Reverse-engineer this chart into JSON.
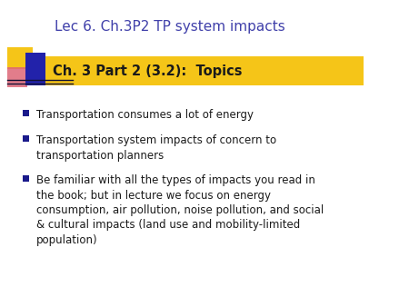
{
  "title": "Lec 6. Ch.3P2 TP system impacts",
  "title_color": "#4040AA",
  "title_fontsize": 11,
  "subtitle": "Ch. 3 Part 2 (3.2):  Topics",
  "subtitle_bg_color": "#F5C518",
  "subtitle_text_color": "#1A1A1A",
  "subtitle_fontsize": 10.5,
  "bullet_points": [
    "Transportation consumes a lot of energy",
    "Transportation system impacts of concern to\ntransportation planners",
    "Be familiar with all the types of impacts you read in\nthe book; but in lecture we focus on energy\nconsumption, air pollution, noise pollution, and social\n& cultural impacts (land use and mobility-limited\npopulation)"
  ],
  "bullet_color": "#1A1A8B",
  "bullet_fontsize": 8.5,
  "text_color": "#1A1A1A",
  "bg_color": "#FFFFFF",
  "deco_yellow": "#F5C518",
  "deco_red": "#CC3333",
  "deco_blue": "#2222AA",
  "deco_pink": "#DD6677"
}
